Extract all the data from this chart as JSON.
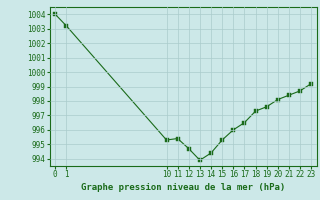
{
  "x": [
    0,
    1,
    10,
    11,
    12,
    13,
    14,
    15,
    16,
    17,
    18,
    19,
    20,
    21,
    22,
    23
  ],
  "y": [
    1004.0,
    1003.2,
    995.3,
    995.4,
    994.7,
    993.9,
    994.4,
    995.3,
    996.0,
    996.5,
    997.3,
    997.6,
    998.1,
    998.4,
    998.7,
    999.2
  ],
  "ylim": [
    993.5,
    1004.5
  ],
  "xlim": [
    -0.5,
    23.5
  ],
  "yticks": [
    994,
    995,
    996,
    997,
    998,
    999,
    1000,
    1001,
    1002,
    1003,
    1004
  ],
  "xticks": [
    0,
    1,
    10,
    11,
    12,
    13,
    14,
    15,
    16,
    17,
    18,
    19,
    20,
    21,
    22,
    23
  ],
  "line_color": "#1a6b1a",
  "marker_color": "#1a6b1a",
  "bg_color": "#cce8e8",
  "grid_color": "#aacccc",
  "xlabel": "Graphe pression niveau de la mer (hPa)",
  "xlabel_color": "#1a6b1a",
  "tick_color": "#1a6b1a",
  "spine_color": "#1a6b1a",
  "tick_fontsize": 5.5,
  "xlabel_fontsize": 6.5
}
